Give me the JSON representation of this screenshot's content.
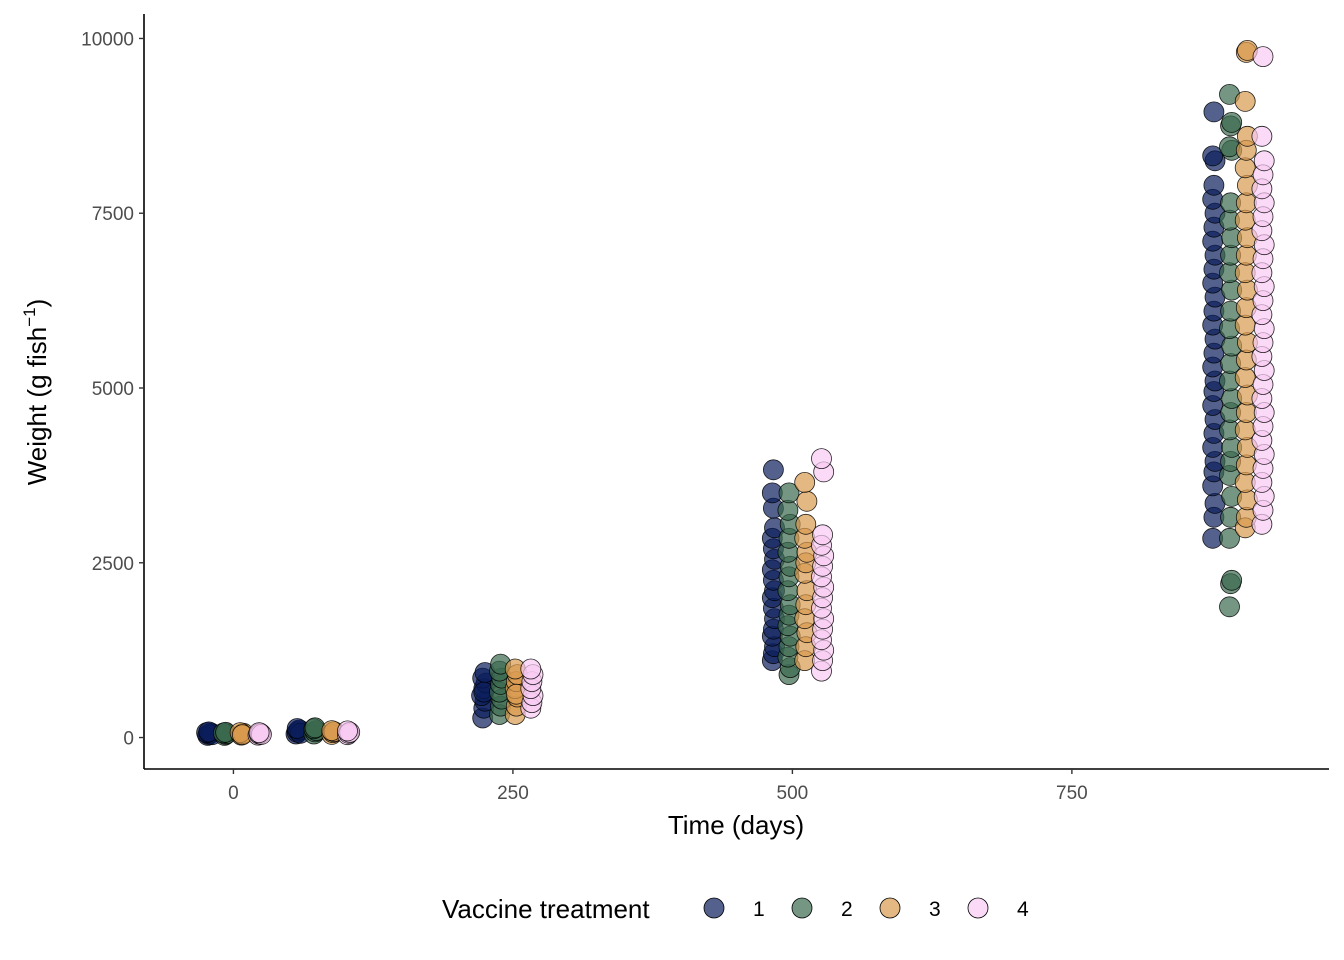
{
  "chart_data": {
    "type": "scatter",
    "title": "",
    "xlabel": "Time (days)",
    "ylabel_parts": {
      "prefix": "Weight (g fish",
      "superscript": "−1",
      "suffix": ")"
    },
    "xlim": [
      -80,
      980
    ],
    "ylim": [
      -450,
      10350
    ],
    "x_ticks": [
      0,
      250,
      500,
      750
    ],
    "x_tick_labels": [
      "0",
      "250",
      "500",
      "750"
    ],
    "y_ticks": [
      0,
      2500,
      5000,
      7500,
      10000
    ],
    "y_tick_labels": [
      "0",
      "2500",
      "5000",
      "7500",
      "10000"
    ],
    "grid": false,
    "legend": {
      "title": "Vaccine treatment",
      "position": "bottom",
      "entries": [
        "1",
        "2",
        "3",
        "4"
      ]
    },
    "marker_opacity": 0.7,
    "series": [
      {
        "name": "1",
        "color": "#0c1e5b",
        "points": [
          [
            -23,
            30
          ],
          [
            -22,
            45
          ],
          [
            -21,
            55
          ],
          [
            -20,
            65
          ],
          [
            -19,
            40
          ],
          [
            -24,
            70
          ],
          [
            -22,
            80
          ],
          [
            56,
            50
          ],
          [
            57,
            75
          ],
          [
            58,
            95
          ],
          [
            59,
            110
          ],
          [
            60,
            60
          ],
          [
            57,
            130
          ],
          [
            223,
            280
          ],
          [
            224,
            420
          ],
          [
            225,
            520
          ],
          [
            222,
            600
          ],
          [
            224,
            700
          ],
          [
            226,
            780
          ],
          [
            223,
            850
          ],
          [
            225,
            930
          ],
          [
            224,
            650
          ],
          [
            482,
            1100
          ],
          [
            483,
            1200
          ],
          [
            484,
            1300
          ],
          [
            482,
            1450
          ],
          [
            483,
            1550
          ],
          [
            484,
            1700
          ],
          [
            483,
            1850
          ],
          [
            482,
            2000
          ],
          [
            484,
            2100
          ],
          [
            483,
            2250
          ],
          [
            482,
            2400
          ],
          [
            484,
            2550
          ],
          [
            483,
            2700
          ],
          [
            482,
            2850
          ],
          [
            484,
            3000
          ],
          [
            483,
            3280
          ],
          [
            482,
            3500
          ],
          [
            483,
            3830
          ],
          [
            876,
            2850
          ],
          [
            877,
            3150
          ],
          [
            878,
            3350
          ],
          [
            876,
            3600
          ],
          [
            877,
            3800
          ],
          [
            878,
            3950
          ],
          [
            876,
            4150
          ],
          [
            877,
            4350
          ],
          [
            878,
            4550
          ],
          [
            876,
            4750
          ],
          [
            877,
            4950
          ],
          [
            878,
            5100
          ],
          [
            876,
            5300
          ],
          [
            877,
            5500
          ],
          [
            878,
            5700
          ],
          [
            876,
            5900
          ],
          [
            877,
            6100
          ],
          [
            878,
            6300
          ],
          [
            876,
            6500
          ],
          [
            877,
            6700
          ],
          [
            878,
            6900
          ],
          [
            876,
            7100
          ],
          [
            877,
            7300
          ],
          [
            878,
            7500
          ],
          [
            876,
            7700
          ],
          [
            877,
            7900
          ],
          [
            878,
            8250
          ],
          [
            876,
            8320
          ],
          [
            877,
            8950
          ]
        ]
      },
      {
        "name": "2",
        "color": "#3b6a4f",
        "points": [
          [
            -8,
            30
          ],
          [
            -7,
            45
          ],
          [
            -6,
            55
          ],
          [
            -9,
            65
          ],
          [
            -7,
            75
          ],
          [
            72,
            50
          ],
          [
            73,
            80
          ],
          [
            74,
            100
          ],
          [
            72,
            125
          ],
          [
            73,
            140
          ],
          [
            238,
            330
          ],
          [
            239,
            450
          ],
          [
            240,
            550
          ],
          [
            238,
            650
          ],
          [
            239,
            760
          ],
          [
            240,
            850
          ],
          [
            238,
            950
          ],
          [
            239,
            1050
          ],
          [
            497,
            900
          ],
          [
            498,
            1000
          ],
          [
            496,
            1150
          ],
          [
            497,
            1300
          ],
          [
            498,
            1450
          ],
          [
            496,
            1600
          ],
          [
            497,
            1750
          ],
          [
            498,
            1900
          ],
          [
            496,
            2100
          ],
          [
            497,
            2300
          ],
          [
            498,
            2450
          ],
          [
            496,
            2650
          ],
          [
            497,
            2850
          ],
          [
            498,
            3050
          ],
          [
            496,
            3250
          ],
          [
            497,
            3500
          ],
          [
            891,
            1870
          ],
          [
            892,
            2200
          ],
          [
            893,
            2250
          ],
          [
            891,
            2850
          ],
          [
            892,
            3150
          ],
          [
            893,
            3450
          ],
          [
            891,
            3750
          ],
          [
            892,
            3950
          ],
          [
            893,
            4150
          ],
          [
            891,
            4400
          ],
          [
            892,
            4650
          ],
          [
            893,
            4850
          ],
          [
            891,
            5100
          ],
          [
            892,
            5350
          ],
          [
            893,
            5600
          ],
          [
            891,
            5850
          ],
          [
            892,
            6100
          ],
          [
            893,
            6400
          ],
          [
            891,
            6650
          ],
          [
            892,
            6900
          ],
          [
            893,
            7150
          ],
          [
            891,
            7400
          ],
          [
            892,
            7650
          ],
          [
            893,
            8400
          ],
          [
            891,
            8450
          ],
          [
            892,
            8750
          ],
          [
            893,
            8800
          ],
          [
            891,
            9200
          ]
        ]
      },
      {
        "name": "3",
        "color": "#d99a4e",
        "points": [
          [
            7,
            35
          ],
          [
            8,
            50
          ],
          [
            9,
            60
          ],
          [
            6,
            70
          ],
          [
            8,
            40
          ],
          [
            88,
            45
          ],
          [
            89,
            70
          ],
          [
            90,
            85
          ],
          [
            88,
            100
          ],
          [
            252,
            330
          ],
          [
            253,
            450
          ],
          [
            254,
            580
          ],
          [
            252,
            700
          ],
          [
            253,
            800
          ],
          [
            254,
            900
          ],
          [
            252,
            980
          ],
          [
            253,
            620
          ],
          [
            511,
            1100
          ],
          [
            512,
            1300
          ],
          [
            513,
            1500
          ],
          [
            511,
            1700
          ],
          [
            512,
            1900
          ],
          [
            513,
            2100
          ],
          [
            511,
            2350
          ],
          [
            512,
            2500
          ],
          [
            513,
            2650
          ],
          [
            511,
            2850
          ],
          [
            512,
            3050
          ],
          [
            513,
            3380
          ],
          [
            511,
            3650
          ],
          [
            905,
            3000
          ],
          [
            906,
            3150
          ],
          [
            907,
            3400
          ],
          [
            905,
            3650
          ],
          [
            906,
            3900
          ],
          [
            907,
            4150
          ],
          [
            905,
            4400
          ],
          [
            906,
            4650
          ],
          [
            907,
            4900
          ],
          [
            905,
            5150
          ],
          [
            906,
            5400
          ],
          [
            907,
            5650
          ],
          [
            905,
            5900
          ],
          [
            906,
            6150
          ],
          [
            907,
            6400
          ],
          [
            905,
            6650
          ],
          [
            906,
            6900
          ],
          [
            907,
            7150
          ],
          [
            905,
            7400
          ],
          [
            906,
            7650
          ],
          [
            907,
            7900
          ],
          [
            905,
            8150
          ],
          [
            906,
            8400
          ],
          [
            907,
            8600
          ],
          [
            905,
            9100
          ],
          [
            906,
            9800
          ],
          [
            907,
            9830
          ]
        ]
      },
      {
        "name": "4",
        "color": "#f8cbf2",
        "points": [
          [
            22,
            35
          ],
          [
            23,
            50
          ],
          [
            24,
            60
          ],
          [
            25,
            45
          ],
          [
            23,
            70
          ],
          [
            102,
            40
          ],
          [
            103,
            60
          ],
          [
            104,
            75
          ],
          [
            102,
            95
          ],
          [
            266,
            420
          ],
          [
            267,
            500
          ],
          [
            268,
            600
          ],
          [
            266,
            700
          ],
          [
            267,
            800
          ],
          [
            268,
            900
          ],
          [
            266,
            980
          ],
          [
            526,
            950
          ],
          [
            527,
            1100
          ],
          [
            528,
            1250
          ],
          [
            526,
            1400
          ],
          [
            527,
            1550
          ],
          [
            528,
            1700
          ],
          [
            526,
            1850
          ],
          [
            527,
            2000
          ],
          [
            528,
            2150
          ],
          [
            526,
            2300
          ],
          [
            527,
            2450
          ],
          [
            528,
            2600
          ],
          [
            526,
            2750
          ],
          [
            527,
            2900
          ],
          [
            528,
            3800
          ],
          [
            526,
            3990
          ],
          [
            920,
            3050
          ],
          [
            921,
            3250
          ],
          [
            922,
            3450
          ],
          [
            920,
            3650
          ],
          [
            921,
            3850
          ],
          [
            922,
            4050
          ],
          [
            920,
            4250
          ],
          [
            921,
            4450
          ],
          [
            922,
            4650
          ],
          [
            920,
            4850
          ],
          [
            921,
            5050
          ],
          [
            922,
            5250
          ],
          [
            920,
            5450
          ],
          [
            921,
            5650
          ],
          [
            922,
            5850
          ],
          [
            920,
            6050
          ],
          [
            921,
            6250
          ],
          [
            922,
            6450
          ],
          [
            920,
            6650
          ],
          [
            921,
            6850
          ],
          [
            922,
            7050
          ],
          [
            920,
            7250
          ],
          [
            921,
            7450
          ],
          [
            922,
            7650
          ],
          [
            920,
            7850
          ],
          [
            921,
            8050
          ],
          [
            922,
            8250
          ],
          [
            920,
            8600
          ],
          [
            921,
            9740
          ]
        ]
      }
    ]
  }
}
